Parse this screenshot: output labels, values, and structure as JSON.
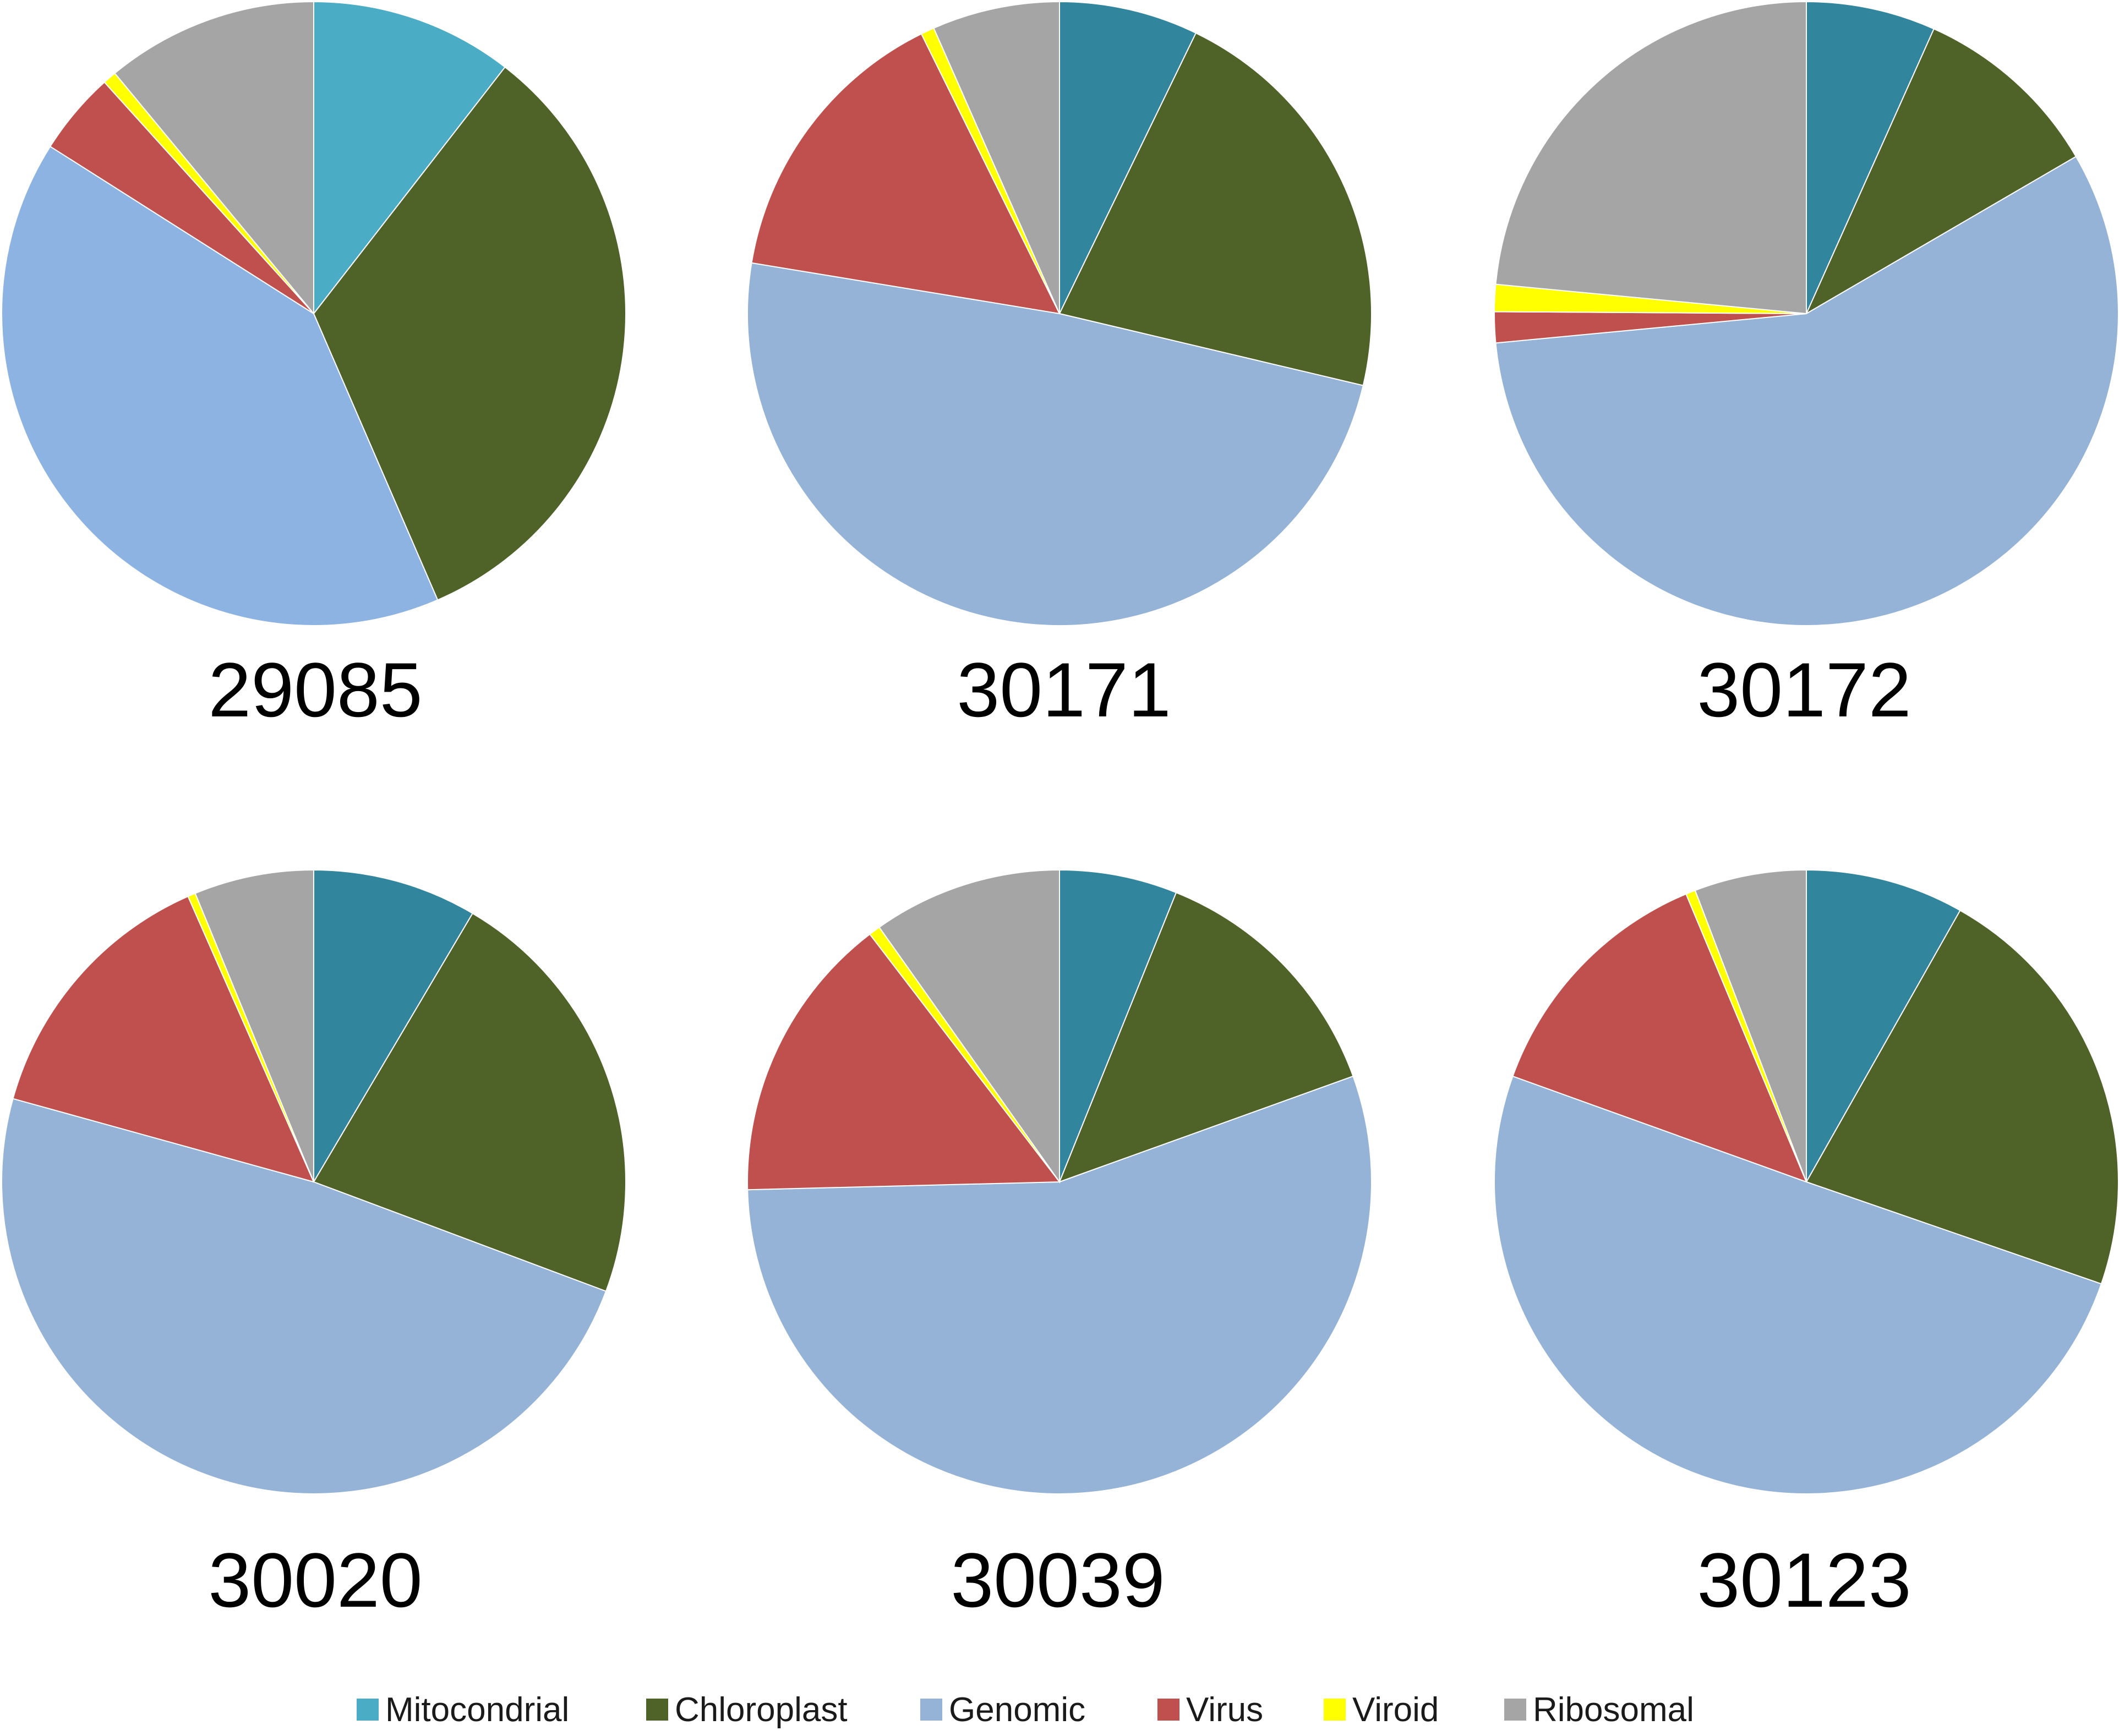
{
  "chart_data": {
    "type": "pie",
    "legend": {
      "position": "bottom",
      "entries": [
        {
          "name": "Mitocondrial",
          "color": "#4bacc6"
        },
        {
          "name": "Chloroplast",
          "color": "#4f6228"
        },
        {
          "name": "Genomic",
          "color": "#95b3d7"
        },
        {
          "name": "Virus",
          "color": "#c0504d"
        },
        {
          "name": "Viroid",
          "color": "#ffff00"
        },
        {
          "name": "Ribosomal",
          "color": "#a5a5a5"
        }
      ]
    },
    "categories": [
      "Mitocondrial",
      "Chloroplast",
      "Genomic",
      "Virus",
      "Viroid",
      "Ribosomal"
    ],
    "pies": [
      {
        "label": "29085",
        "values": [
          10.5,
          33.0,
          40.5,
          4.3,
          0.7,
          11.0
        ],
        "colors": [
          "#4bacc6",
          "#4f6228",
          "#8db3e2",
          "#c0504d",
          "#ffff00",
          "#a5a5a5"
        ]
      },
      {
        "label": "30171",
        "values": [
          7.2,
          21.5,
          48.9,
          15.1,
          0.7,
          6.6
        ],
        "colors": [
          "#31859c",
          "#4f6228",
          "#95b3d7",
          "#c0504d",
          "#ffff00",
          "#a5a5a5"
        ]
      },
      {
        "label": "30172",
        "values": [
          6.7,
          9.9,
          56.9,
          1.6,
          1.4,
          23.5
        ],
        "colors": [
          "#31859c",
          "#4f6228",
          "#95b3d7",
          "#c0504d",
          "#ffff00",
          "#a5a5a5"
        ]
      },
      {
        "label": "30020",
        "values": [
          8.5,
          22.2,
          48.6,
          14.1,
          0.4,
          6.2
        ],
        "colors": [
          "#31859c",
          "#4f6228",
          "#95b3d7",
          "#c0504d",
          "#ffff00",
          "#a5a5a5"
        ]
      },
      {
        "label": "30039",
        "values": [
          6.1,
          13.4,
          55.1,
          15.0,
          0.6,
          9.8
        ],
        "colors": [
          "#31859c",
          "#4f6228",
          "#95b3d7",
          "#c0504d",
          "#ffff00",
          "#a5a5a5"
        ]
      },
      {
        "label": "30123",
        "values": [
          8.2,
          22.1,
          50.2,
          13.2,
          0.5,
          5.8
        ],
        "colors": [
          "#31859c",
          "#4f6228",
          "#95b3d7",
          "#c0504d",
          "#ffff00",
          "#a5a5a5"
        ]
      }
    ]
  }
}
